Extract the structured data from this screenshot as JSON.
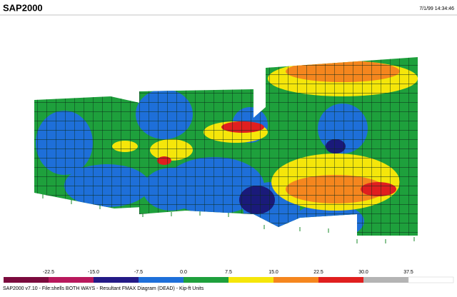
{
  "header": {
    "title": "SAP2000",
    "timestamp": "7/1/99 14:34:46"
  },
  "legend": {
    "labels": [
      "-22.5",
      "-15.0",
      "-7.5",
      "0.0",
      "7.5",
      "15.0",
      "22.5",
      "30.0",
      "37.5"
    ]
  },
  "footer": {
    "status": "SAP2000 v7.10 - File:shells BOTH WAYS - Resultant FMAX Diagram (DEAD) - Kip-ft Units"
  }
}
